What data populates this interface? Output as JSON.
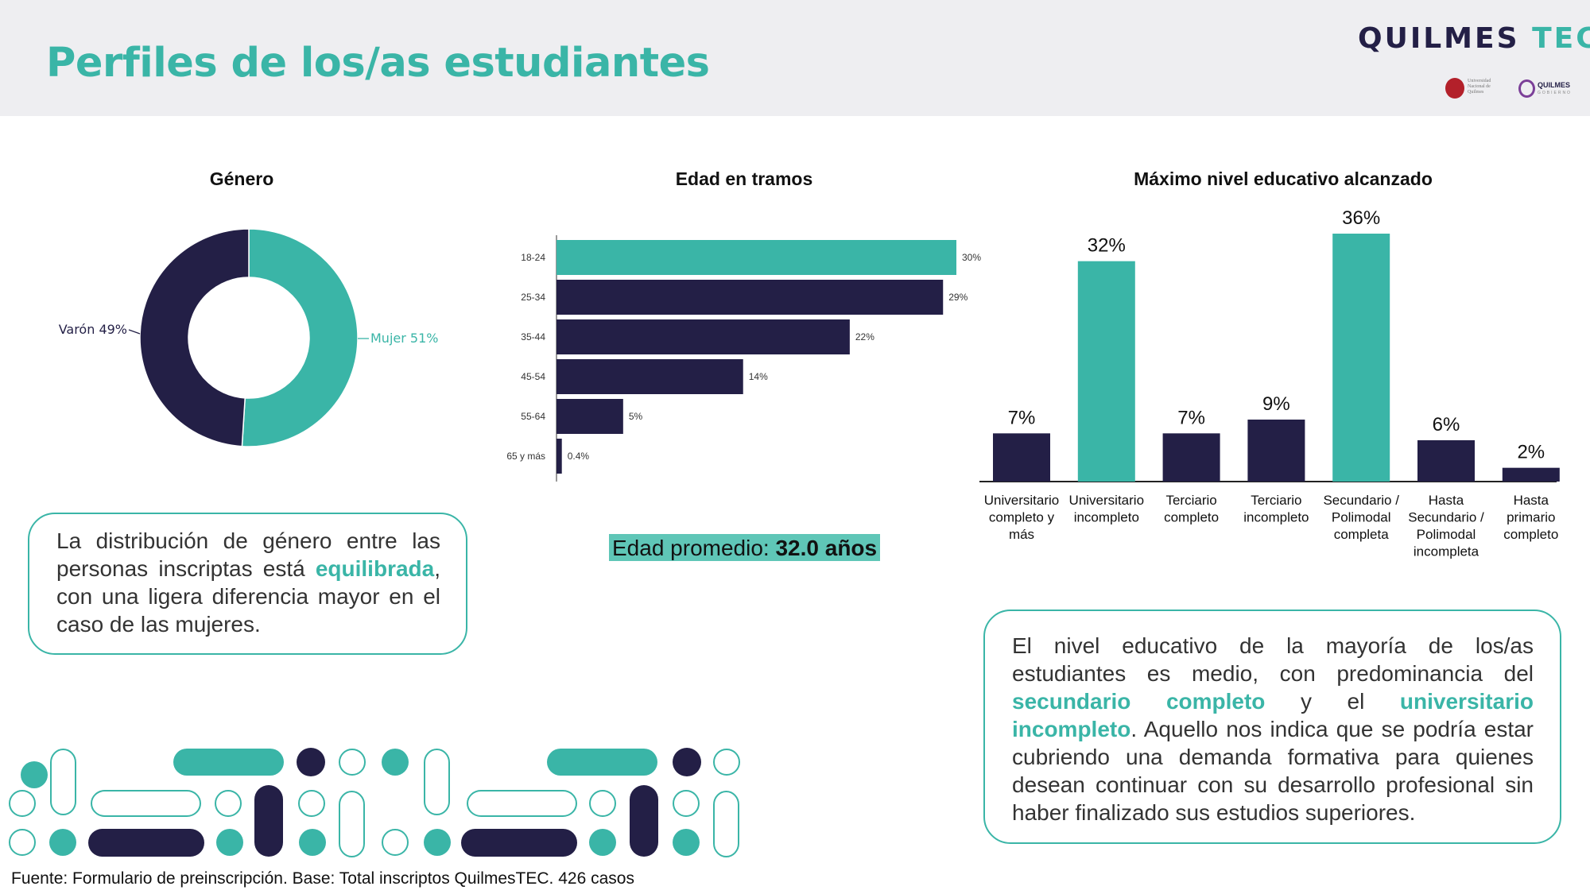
{
  "page": {
    "title": "Perfiles de los/as estudiantes",
    "brand": {
      "part1": "QUILMES",
      "part2": "TEC"
    },
    "logos": {
      "unq": "Universidad Nacional de Quilmes",
      "qg": {
        "name": "QUILMES",
        "sub": "GOBIERNO"
      }
    },
    "source": "Fuente: Formulario de preinscripción. Base: Total inscriptos QuilmesTEC. 426 casos"
  },
  "colors": {
    "teal": "#3ab5a7",
    "navy": "#231f46",
    "highlight_box": "#5fc6b7"
  },
  "chart_data": [
    {
      "type": "pie",
      "variant": "donut",
      "title": "Género",
      "slices": [
        {
          "label": "Mujer",
          "value": 51,
          "display": "Mujer 51%",
          "color": "#3ab5a7"
        },
        {
          "label": "Varón",
          "value": 49,
          "display": "Varón 49%",
          "color": "#231f46"
        }
      ]
    },
    {
      "type": "bar",
      "orientation": "horizontal",
      "title": "Edad en tramos",
      "categories": [
        "18-24",
        "25-34",
        "35-44",
        "45-54",
        "55-64",
        "65 y más"
      ],
      "values": [
        30,
        29,
        22,
        14,
        5,
        0.4
      ],
      "labels": [
        "30%",
        "29%",
        "22%",
        "14%",
        "5%",
        "0.4%"
      ],
      "colors": [
        "#3ab5a7",
        "#231f46",
        "#231f46",
        "#231f46",
        "#231f46",
        "#231f46"
      ]
    },
    {
      "type": "bar",
      "title": "Máximo nivel educativo alcanzado",
      "categories": [
        [
          "Universitario",
          "completo y",
          "más"
        ],
        [
          "Universitario",
          "incompleto"
        ],
        [
          "Terciario",
          "completo"
        ],
        [
          "Terciario",
          "incompleto"
        ],
        [
          "Secundario /",
          "Polimodal",
          "completa"
        ],
        [
          "Hasta",
          "Secundario /",
          "Polimodal",
          "incompleta"
        ],
        [
          "Hasta",
          "primario",
          "completo"
        ]
      ],
      "values": [
        7,
        32,
        7,
        9,
        36,
        6,
        2
      ],
      "labels": [
        "7%",
        "32%",
        "7%",
        "9%",
        "36%",
        "6%",
        "2%"
      ],
      "colors": [
        "#231f46",
        "#3ab5a7",
        "#231f46",
        "#231f46",
        "#3ab5a7",
        "#231f46",
        "#231f46"
      ]
    }
  ],
  "age_summary": {
    "label": "Edad promedio: ",
    "value": "32.0 años"
  },
  "gender_note": {
    "before": "La distribución de género entre las personas inscriptas está ",
    "highlight": "equilibrada",
    "after": ", con una ligera diferencia mayor en el caso de las mujeres."
  },
  "education_note": {
    "part1": "El nivel educativo de la mayoría de los/as estudiantes es medio, con predominancia del ",
    "highlight1": "secundario completo",
    "part2": " y el ",
    "highlight2": "universitario incompleto",
    "part3": ". Aquello nos indica que se podría estar cubriendo una demanda formativa para quienes desean continuar con su desarrollo profesional sin haber finalizado sus estudios superiores."
  }
}
